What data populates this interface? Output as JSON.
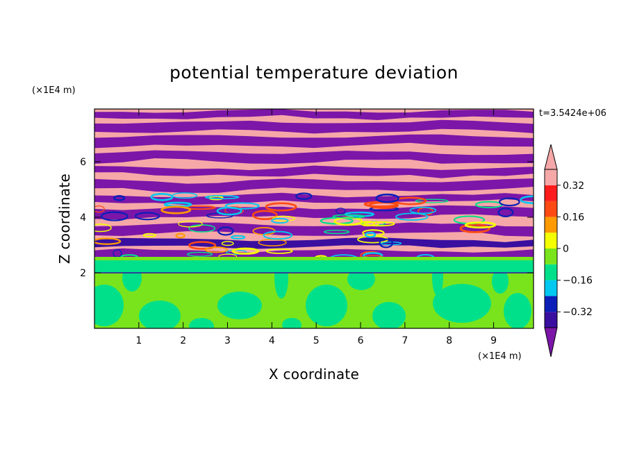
{
  "chart_data": {
    "type": "heatmap",
    "title": "potential temperature deviation",
    "xlabel": "X coordinate",
    "ylabel": "Z coordinate",
    "x_unit": "(×1E4 m)",
    "y_unit": "(×1E4 m)",
    "time_label": "t=3.5424e+06",
    "xlim": [
      0,
      9.9
    ],
    "ylim": [
      0,
      7.9
    ],
    "x_ticks": [
      1,
      2,
      3,
      4,
      5,
      6,
      7,
      8,
      9
    ],
    "y_ticks": [
      2,
      4,
      6
    ],
    "colorbar": {
      "levels": [
        -0.4,
        -0.32,
        -0.24,
        -0.16,
        -0.08,
        0,
        0.08,
        0.16,
        0.24,
        0.32,
        0.4
      ],
      "tick_values": [
        -0.32,
        -0.16,
        0,
        0.16,
        0.32
      ],
      "tick_labels": [
        "−0.32",
        "−0.16",
        "0",
        "0.16",
        "0.32"
      ],
      "colors": [
        "#7b16a8",
        "#3a0fa0",
        "#0b1fb8",
        "#00c8f0",
        "#00e08a",
        "#79e41c",
        "#f4ff00",
        "#ff9a00",
        "#ff4a14",
        "#ff1c1c",
        "#f6a8a8"
      ],
      "extend": "both"
    },
    "description_layers": {
      "lower_layer_top_z": 2.0,
      "lower_layer_colors": [
        "#00e08a",
        "#79e41c"
      ],
      "upper_banded_layer_colors": [
        "#f6a8a8",
        "#7b16a8"
      ],
      "transition_band_z": [
        2.4,
        4.8
      ]
    }
  }
}
